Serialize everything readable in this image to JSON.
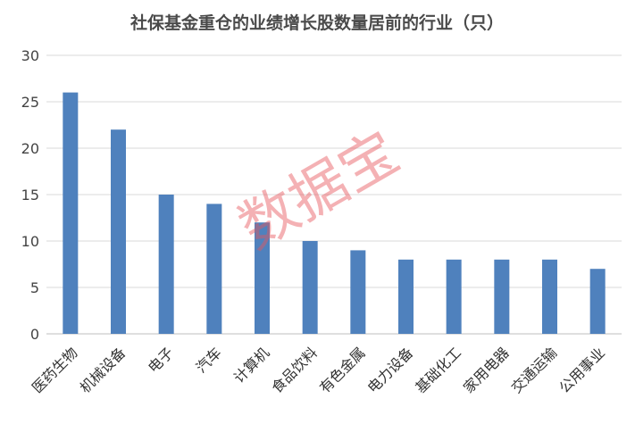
{
  "chart_data": {
    "type": "bar",
    "title": "社保基金重仓的业绩增长股数量居前的行业（只）",
    "categories": [
      "医药生物",
      "机械设备",
      "电子",
      "汽车",
      "计算机",
      "食品饮料",
      "有色金属",
      "电力设备",
      "基础化工",
      "家用电器",
      "交通运输",
      "公用事业"
    ],
    "values": [
      26,
      22,
      15,
      14,
      12,
      10,
      9,
      8,
      8,
      8,
      8,
      7
    ],
    "yticks": [
      0,
      5,
      10,
      15,
      20,
      25,
      30
    ],
    "ylim": [
      0,
      30
    ],
    "xlabel": "",
    "ylabel": "",
    "grid": true,
    "bar_color": "#4f81bd"
  },
  "watermark": {
    "text": "数据宝"
  }
}
